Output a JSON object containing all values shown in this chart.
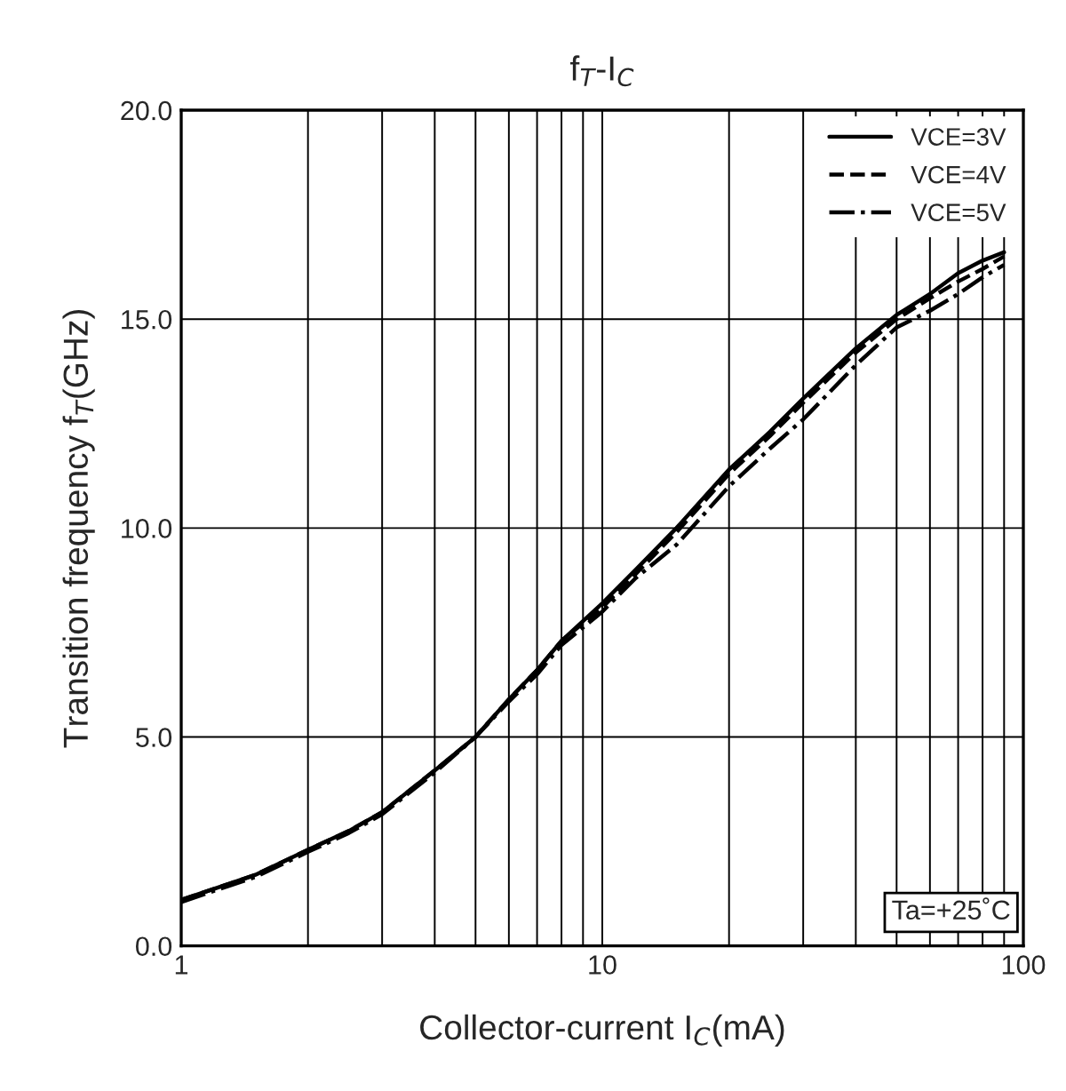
{
  "chart_data": {
    "type": "line",
    "title": "f$_{T}$-I$_{C}$",
    "xlabel": "Collector-current I$_{C}$(mA)",
    "ylabel": "Transition frequency f$_{T}$(GHz)",
    "log": "x",
    "xlim": [
      1,
      100
    ],
    "ylim": [
      0,
      20
    ],
    "xticks": [
      1,
      {
        "value": 2,
        "label": null
      },
      {
        "value": 3,
        "label": null
      },
      {
        "value": 4,
        "label": null
      },
      {
        "value": 5,
        "label": null
      },
      {
        "value": 6,
        "label": null
      },
      {
        "value": 7,
        "label": null
      },
      {
        "value": 8,
        "label": null
      },
      {
        "value": 9,
        "label": null
      },
      10,
      {
        "value": 20,
        "label": null
      },
      {
        "value": 30,
        "label": null
      },
      {
        "value": 40,
        "label": null
      },
      {
        "value": 50,
        "label": null
      },
      {
        "value": 60,
        "label": null
      },
      {
        "value": 70,
        "label": null
      },
      {
        "value": 80,
        "label": null
      },
      {
        "value": 90,
        "label": null
      },
      100
    ],
    "yticks": [
      {
        "value": 0,
        "label": "0.0"
      },
      {
        "value": 5,
        "label": "5.0"
      },
      {
        "value": 10,
        "label": "10.0"
      },
      {
        "value": 15,
        "label": "15.0"
      },
      {
        "value": 20,
        "label": "20.0"
      }
    ],
    "grid": true,
    "legend": "top right",
    "marker": "none",
    "x": [
      1,
      1.5,
      2,
      2.5,
      3,
      4,
      5,
      6,
      7,
      8,
      10,
      12,
      15,
      20,
      25,
      30,
      40,
      50,
      60,
      70,
      80,
      90
    ],
    "series": [
      {
        "name": "VCE=3V",
        "color": "#000000",
        "line_style": "solid",
        "values": [
          1.1,
          1.7,
          2.3,
          2.75,
          3.2,
          4.2,
          5.0,
          5.9,
          6.6,
          7.3,
          8.2,
          9.0,
          10.0,
          11.4,
          12.3,
          13.1,
          14.3,
          15.1,
          15.6,
          16.1,
          16.4,
          16.6
        ]
      },
      {
        "name": "VCE=4V",
        "color": "#000000",
        "line_style": "dashed",
        "values": [
          1.1,
          1.7,
          2.3,
          2.75,
          3.2,
          4.2,
          5.0,
          5.9,
          6.6,
          7.3,
          8.1,
          8.9,
          9.9,
          11.3,
          12.2,
          13.0,
          14.2,
          15.0,
          15.5,
          15.9,
          16.2,
          16.5
        ]
      },
      {
        "name": "VCE=5V",
        "color": "#000000",
        "line_style": "dashdot",
        "values": [
          1.05,
          1.65,
          2.25,
          2.7,
          3.15,
          4.15,
          5.0,
          5.85,
          6.5,
          7.2,
          8.0,
          8.8,
          9.6,
          11.0,
          11.9,
          12.6,
          13.9,
          14.8,
          15.2,
          15.6,
          16.0,
          16.3
        ]
      }
    ],
    "annotations": [
      "Ta=+25˚C"
    ]
  }
}
